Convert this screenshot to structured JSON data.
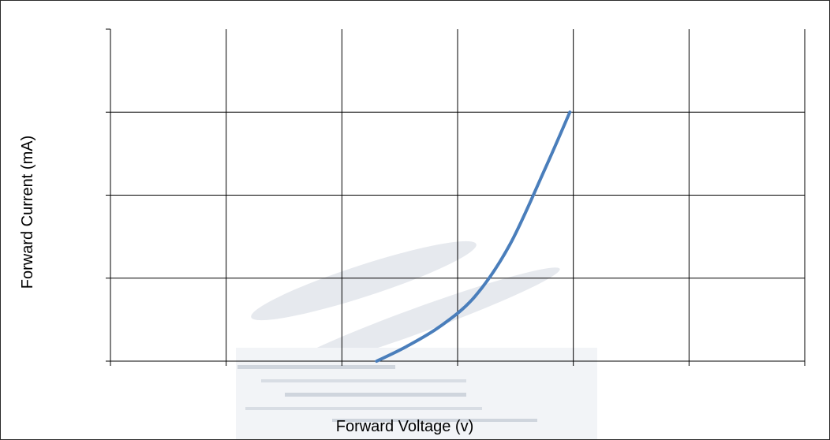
{
  "chart_data": {
    "type": "line",
    "title": "",
    "xlabel": "Forward Voltage (v)",
    "ylabel": "Forward Current  (mA)",
    "xlim": [
      0,
      6
    ],
    "ylim": [
      0,
      4
    ],
    "x_gridlines": 6,
    "y_gridlines": 4,
    "tick_labels_x": [],
    "tick_labels_y": [],
    "grid": true,
    "legend": "none",
    "series": [
      {
        "color": "#4a7ebb",
        "x": [
          2.3,
          2.55,
          2.85,
          3.15,
          3.45,
          3.75,
          3.97
        ],
        "y": [
          0.0,
          0.17,
          0.42,
          0.78,
          1.4,
          2.3,
          3.0
        ]
      }
    ]
  }
}
